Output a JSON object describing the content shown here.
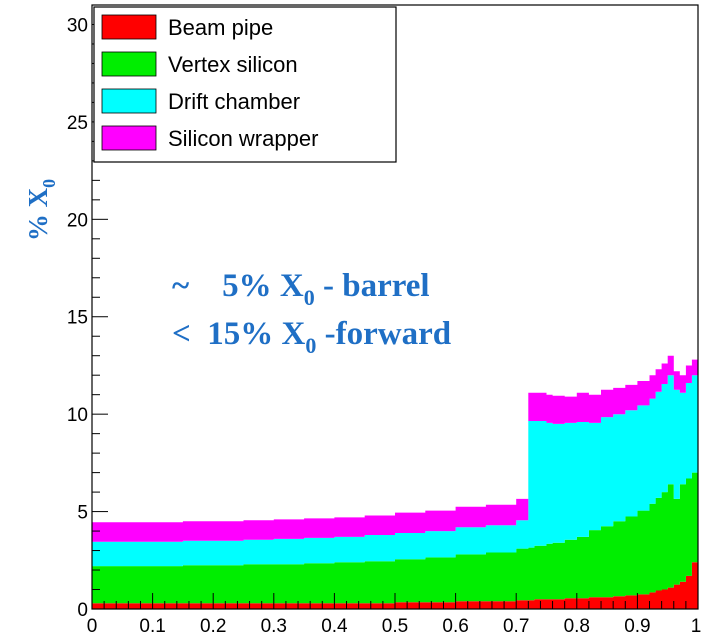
{
  "chart_data": {
    "type": "area",
    "title": "",
    "xlabel": "",
    "ylabel": "% X",
    "ylabel_sub": "0",
    "xlim": [
      0,
      1
    ],
    "ylim": [
      0,
      31
    ],
    "x_ticks": [
      0,
      0.1,
      0.2,
      0.3,
      0.4,
      0.5,
      0.6,
      0.7,
      0.8,
      0.9,
      1
    ],
    "x_tick_labels": [
      "0",
      "0.1",
      "0.2",
      "0.3",
      "0.4",
      "0.5",
      "0.6",
      "0.7",
      "0.8",
      "0.9",
      "1"
    ],
    "y_ticks": [
      0,
      5,
      10,
      15,
      20,
      25,
      30
    ],
    "y_tick_labels": [
      "0",
      "5",
      "10",
      "15",
      "20",
      "25",
      "30"
    ],
    "stacked": true,
    "x": [
      0,
      0.05,
      0.1,
      0.15,
      0.2,
      0.25,
      0.3,
      0.35,
      0.4,
      0.45,
      0.5,
      0.55,
      0.6,
      0.65,
      0.7,
      0.72,
      0.73,
      0.75,
      0.76,
      0.78,
      0.8,
      0.82,
      0.84,
      0.86,
      0.88,
      0.9,
      0.92,
      0.93,
      0.94,
      0.95,
      0.96,
      0.97,
      0.98,
      0.99,
      1
    ],
    "series": [
      {
        "name": "Beam pipe",
        "color": "#ff0000",
        "values": [
          0.3,
          0.3,
          0.3,
          0.3,
          0.3,
          0.3,
          0.3,
          0.3,
          0.3,
          0.3,
          0.35,
          0.35,
          0.4,
          0.4,
          0.45,
          0.45,
          0.5,
          0.5,
          0.5,
          0.55,
          0.55,
          0.6,
          0.6,
          0.65,
          0.7,
          0.75,
          0.85,
          0.95,
          1.0,
          1.1,
          1.25,
          1.4,
          1.7,
          2.4,
          3.3
        ]
      },
      {
        "name": "Vertex silicon",
        "color": "#00ee00",
        "values": [
          1.9,
          1.9,
          1.9,
          1.95,
          1.95,
          2.0,
          2.0,
          2.05,
          2.1,
          2.15,
          2.2,
          2.3,
          2.4,
          2.5,
          2.65,
          2.7,
          2.75,
          2.85,
          2.9,
          3.0,
          3.15,
          3.45,
          3.65,
          3.85,
          4.05,
          4.3,
          4.55,
          4.75,
          5.0,
          5.3,
          4.4,
          5.0,
          5.0,
          4.6,
          0.0
        ]
      },
      {
        "name": "Drift chamber",
        "color": "#00ffff",
        "values": [
          1.25,
          1.25,
          1.25,
          1.25,
          1.25,
          1.25,
          1.3,
          1.3,
          1.3,
          1.35,
          1.35,
          1.35,
          1.4,
          1.4,
          1.45,
          6.5,
          6.4,
          6.2,
          6.1,
          6.0,
          5.9,
          5.5,
          5.6,
          5.5,
          5.45,
          5.4,
          5.4,
          5.45,
          5.55,
          5.6,
          5.6,
          4.7,
          4.9,
          5.0,
          0.0
        ]
      },
      {
        "name": "Silicon wrapper",
        "color": "#ff00ff",
        "values": [
          1.0,
          1.0,
          1.0,
          1.0,
          1.0,
          1.0,
          1.0,
          1.0,
          1.0,
          1.0,
          1.05,
          1.05,
          1.05,
          1.05,
          1.1,
          1.45,
          1.45,
          1.45,
          1.45,
          1.35,
          1.5,
          1.45,
          1.4,
          1.35,
          1.3,
          1.25,
          1.2,
          1.15,
          1.05,
          1.0,
          0.95,
          0.9,
          0.9,
          0.8,
          0.0
        ]
      }
    ],
    "legend": {
      "position": "top-left",
      "entries": [
        "Beam pipe",
        "Vertex silicon",
        "Drift chamber",
        "Silicon wrapper"
      ]
    },
    "annotations": [
      {
        "prefix": "~    5% X",
        "sub": "0",
        "suffix": " - barrel"
      },
      {
        "prefix": "<  15% X",
        "sub": "0",
        "suffix": " -forward"
      }
    ]
  }
}
